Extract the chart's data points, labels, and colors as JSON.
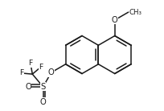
{
  "bg_color": "#ffffff",
  "line_color": "#1a1a1a",
  "line_width": 1.1,
  "font_size": 7.2,
  "figsize": [
    2.05,
    1.38
  ],
  "dpi": 100,
  "xlim": [
    0,
    2.05
  ],
  "ylim": [
    0,
    1.38
  ]
}
